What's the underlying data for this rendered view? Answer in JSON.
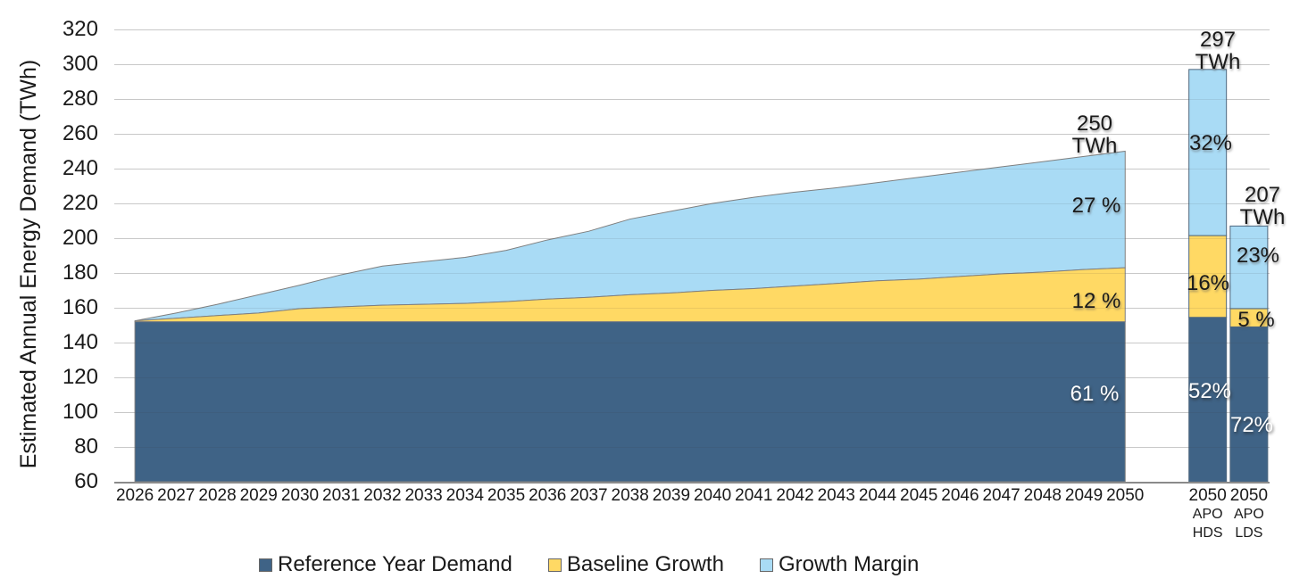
{
  "y_axis": {
    "title": "Estimated Annual Energy Demand (TWh)",
    "ticks": [
      320,
      300,
      280,
      260,
      240,
      220,
      200,
      180,
      160,
      140,
      120,
      100,
      80,
      60
    ],
    "min": 60,
    "max": 320,
    "step": 20
  },
  "x_axis": {
    "years": [
      "2026",
      "2027",
      "2028",
      "2029",
      "2030",
      "2031",
      "2032",
      "2033",
      "2034",
      "2035",
      "2036",
      "2037",
      "2038",
      "2039",
      "2040",
      "2041",
      "2042",
      "2043",
      "2044",
      "2045",
      "2046",
      "2047",
      "2048",
      "2049",
      "2050"
    ]
  },
  "chart_data": {
    "type": "stacked-area-with-stacked-bars",
    "title": "",
    "ylabel": "Estimated Annual Energy Demand (TWh)",
    "ylim": [
      60,
      320
    ],
    "ytick_step": 20,
    "grid": true,
    "legend_position": "bottom",
    "x": [
      2026,
      2027,
      2028,
      2029,
      2030,
      2031,
      2032,
      2033,
      2034,
      2035,
      2036,
      2037,
      2038,
      2039,
      2040,
      2041,
      2042,
      2043,
      2044,
      2045,
      2046,
      2047,
      2048,
      2049,
      2050
    ],
    "series": [
      {
        "name": "Reference Year Demand",
        "color": "#3F6386",
        "values": [
          152,
          152,
          152,
          152,
          152,
          152,
          152,
          152,
          152,
          152,
          152,
          152,
          152,
          152,
          152,
          152,
          152,
          152,
          152,
          152,
          152,
          152,
          152,
          152,
          152
        ]
      },
      {
        "name": "Baseline Growth",
        "color": "#FFD964",
        "values": [
          0.5,
          2,
          3.5,
          5,
          7.5,
          8.5,
          9.5,
          10,
          10.5,
          11.5,
          13,
          14,
          15.5,
          16.5,
          18,
          19,
          20.5,
          22,
          23.5,
          24.5,
          26,
          27.5,
          28.5,
          30,
          31
        ]
      },
      {
        "name": "Growth Margin",
        "color": "#A9DBF5",
        "values": [
          0,
          3,
          6.5,
          10.5,
          13.5,
          18.5,
          22.5,
          24.5,
          26.5,
          29.5,
          34,
          38,
          43.5,
          47,
          50,
          52.5,
          54,
          55,
          56.5,
          58.5,
          60,
          61.5,
          63.5,
          65,
          67
        ]
      }
    ],
    "totals_by_year": [
      152.5,
      157,
      162,
      167.5,
      173,
      179,
      184,
      186.5,
      189,
      193,
      199,
      204,
      211,
      215.5,
      220,
      223.5,
      226.5,
      229,
      232,
      235,
      238,
      241,
      244,
      247,
      250
    ],
    "area_labels": {
      "total_value": "250",
      "total_unit": "TWh",
      "margin_pct": "27 %",
      "baseline_pct": "12 %",
      "reference_pct": "61 %"
    },
    "bars": [
      {
        "id": "hds",
        "category_lines": [
          "2050",
          "APO",
          "HDS"
        ],
        "total": 297,
        "segments": [
          154.5,
          47,
          95.5
        ],
        "labels": {
          "total_value": "297",
          "total_unit": "TWh",
          "margin_pct": "32%",
          "baseline_pct": "16%",
          "reference_pct": "52%"
        }
      },
      {
        "id": "lds",
        "category_lines": [
          "2050",
          "APO",
          "LDS"
        ],
        "total": 207,
        "segments": [
          149,
          10.5,
          47.5
        ],
        "labels": {
          "total_value": "207",
          "total_unit": "TWh",
          "margin_pct": "23%",
          "baseline_pct": "5 %",
          "reference_pct": "72%"
        }
      }
    ]
  },
  "legend": {
    "items": [
      {
        "label": "Reference Year Demand",
        "color": "#3F6386"
      },
      {
        "label": "Baseline Growth",
        "color": "#FFD964"
      },
      {
        "label": "Growth Margin",
        "color": "#A9DBF5"
      }
    ]
  },
  "colors": {
    "reference": "#3F6386",
    "baseline": "#FFD964",
    "margin": "#A9DBF5",
    "gridline": "#D9D9D9",
    "axis_line": "#8A8A8A",
    "area_outline": "#7F7F7F",
    "bar_outline": "#4F677E"
  }
}
